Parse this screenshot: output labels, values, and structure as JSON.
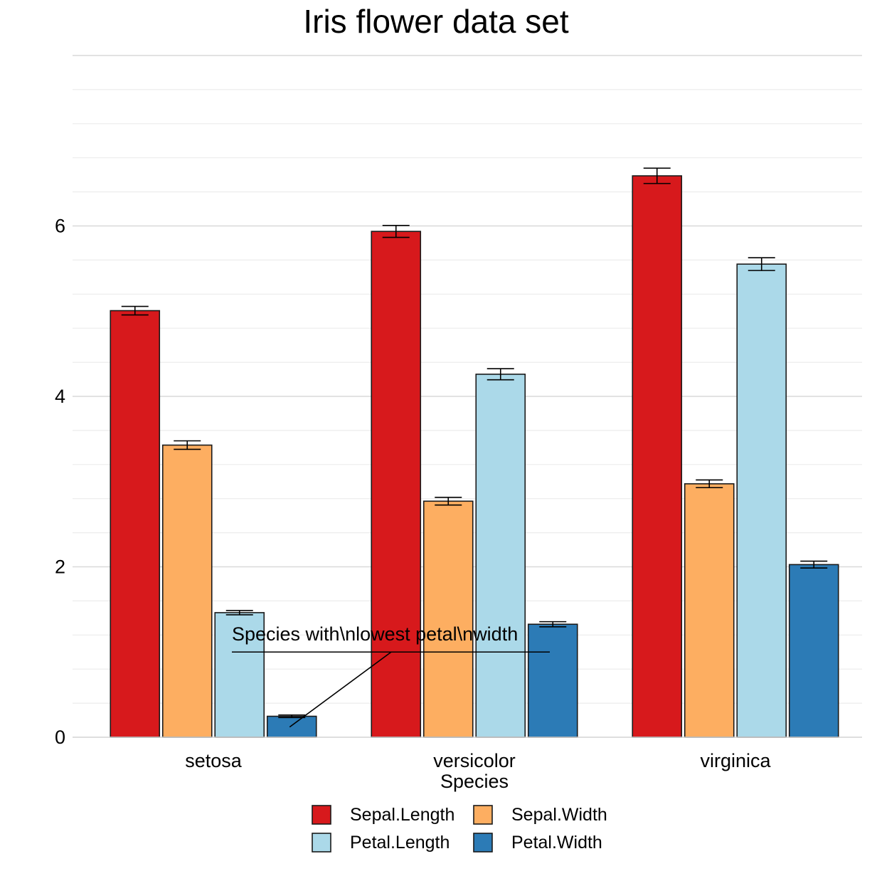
{
  "chart_data": {
    "type": "bar",
    "title": "Iris flower data set",
    "xlabel": "Species",
    "ylabel": "",
    "ylim": [
      0,
      8
    ],
    "y_ticks": [
      0,
      2,
      4,
      6
    ],
    "y_tick_labels": [
      "0",
      "2",
      "4",
      "6"
    ],
    "grid": true,
    "legend_position": "bottom",
    "categories": [
      "setosa",
      "versicolor",
      "virginica"
    ],
    "series": [
      {
        "name": "Sepal.Length",
        "color": "#d7191c",
        "values": [
          5.006,
          5.936,
          6.588
        ],
        "error": [
          0.05,
          0.07,
          0.09
        ]
      },
      {
        "name": "Sepal.Width",
        "color": "#fdae61",
        "values": [
          3.428,
          2.77,
          2.974
        ],
        "error": [
          0.05,
          0.045,
          0.045
        ]
      },
      {
        "name": "Petal.Length",
        "color": "#abd9e9",
        "values": [
          1.462,
          4.26,
          5.552
        ],
        "error": [
          0.025,
          0.065,
          0.075
        ]
      },
      {
        "name": "Petal.Width",
        "color": "#2c7bb6",
        "values": [
          0.246,
          1.326,
          2.026
        ],
        "error": [
          0.015,
          0.03,
          0.04
        ]
      }
    ],
    "annotation": {
      "text": "Species with\\nlowest petal\\nwidth",
      "points_to": {
        "category": "setosa",
        "series": "Petal.Width",
        "value": 0.12
      },
      "label_anchor_value": 1.0
    }
  }
}
